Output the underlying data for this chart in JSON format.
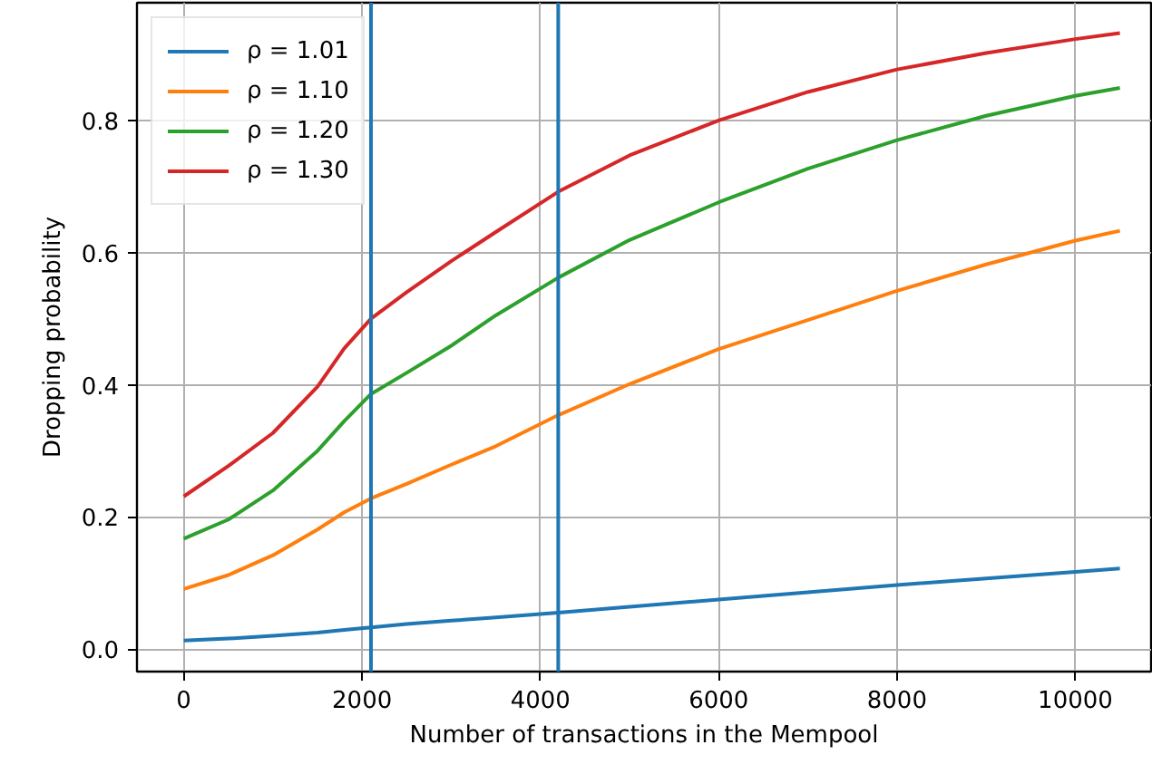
{
  "chart_data": {
    "type": "line",
    "xlabel": "Number of transactions in the Mempool",
    "ylabel": "Dropping probability",
    "x": [
      0,
      500,
      1000,
      1500,
      1800,
      2100,
      2500,
      3000,
      3500,
      4200,
      5000,
      6000,
      7000,
      8000,
      9000,
      10000,
      10500
    ],
    "series": [
      {
        "name": "ρ = 1.01",
        "color": "#1f77b4",
        "values": [
          0.013,
          0.016,
          0.02,
          0.025,
          0.029,
          0.033,
          0.038,
          0.043,
          0.048,
          0.055,
          0.064,
          0.075,
          0.086,
          0.097,
          0.107,
          0.117,
          0.122
        ]
      },
      {
        "name": "ρ = 1.10",
        "color": "#ff7f0e",
        "values": [
          0.091,
          0.112,
          0.142,
          0.181,
          0.207,
          0.228,
          0.25,
          0.279,
          0.307,
          0.354,
          0.401,
          0.454,
          0.498,
          0.542,
          0.582,
          0.618,
          0.633
        ]
      },
      {
        "name": "ρ = 1.20",
        "color": "#2ca02c",
        "values": [
          0.167,
          0.196,
          0.24,
          0.3,
          0.345,
          0.386,
          0.418,
          0.459,
          0.505,
          0.562,
          0.619,
          0.676,
          0.727,
          0.77,
          0.807,
          0.837,
          0.849
        ]
      },
      {
        "name": "ρ = 1.30",
        "color": "#d62728",
        "values": [
          0.231,
          0.277,
          0.327,
          0.397,
          0.455,
          0.5,
          0.54,
          0.587,
          0.631,
          0.692,
          0.747,
          0.8,
          0.843,
          0.877,
          0.902,
          0.923,
          0.932
        ]
      }
    ],
    "xlim": [
      -525,
      10850
    ],
    "ylim": [
      -0.034,
      0.978
    ],
    "xticks": [
      0,
      2000,
      4000,
      6000,
      8000,
      10000
    ],
    "yticks": [
      {
        "value": 0,
        "label": "0.0"
      },
      0.2,
      0.4,
      0.6,
      0.8
    ],
    "ref_lines": [
      {
        "axis": "x",
        "value": 2100,
        "color": "#1f77b4"
      },
      {
        "axis": "x",
        "value": 4200,
        "color": "#1f77b4"
      }
    ],
    "grid": true,
    "legend": "top left"
  }
}
